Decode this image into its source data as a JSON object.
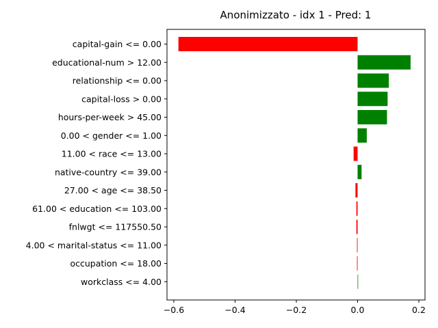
{
  "chart_data": {
    "type": "bar",
    "orientation": "horizontal",
    "title": "Anonimizzato - idx 1 - Pred: 1",
    "xlabel": "",
    "ylabel": "",
    "xlim": [
      -0.6,
      0.2
    ],
    "xticks": [
      -0.6,
      -0.4,
      -0.2,
      0.0,
      0.2
    ],
    "xtick_labels": [
      "−0.6",
      "−0.4",
      "−0.2",
      "0.0",
      "0.2"
    ],
    "grid": false,
    "colors": {
      "positive": "#008000",
      "negative": "#ff0000"
    },
    "categories": [
      "capital-gain <= 0.00",
      "educational-num > 12.00",
      "relationship <= 0.00",
      "capital-loss > 0.00",
      "hours-per-week > 45.00",
      "0.00 < gender <= 1.00",
      "11.00 < race <= 13.00",
      "native-country <= 39.00",
      "27.00 < age <= 38.50",
      "61.00 < education <= 103.00",
      "fnlwgt <= 117550.50",
      "4.00 < marital-status <= 11.00",
      "occupation <= 18.00",
      "workclass <= 4.00"
    ],
    "values": [
      -0.585,
      0.173,
      0.102,
      0.098,
      0.096,
      0.03,
      -0.013,
      0.013,
      -0.007,
      -0.004,
      -0.004,
      -0.002,
      -0.002,
      0.001
    ]
  }
}
